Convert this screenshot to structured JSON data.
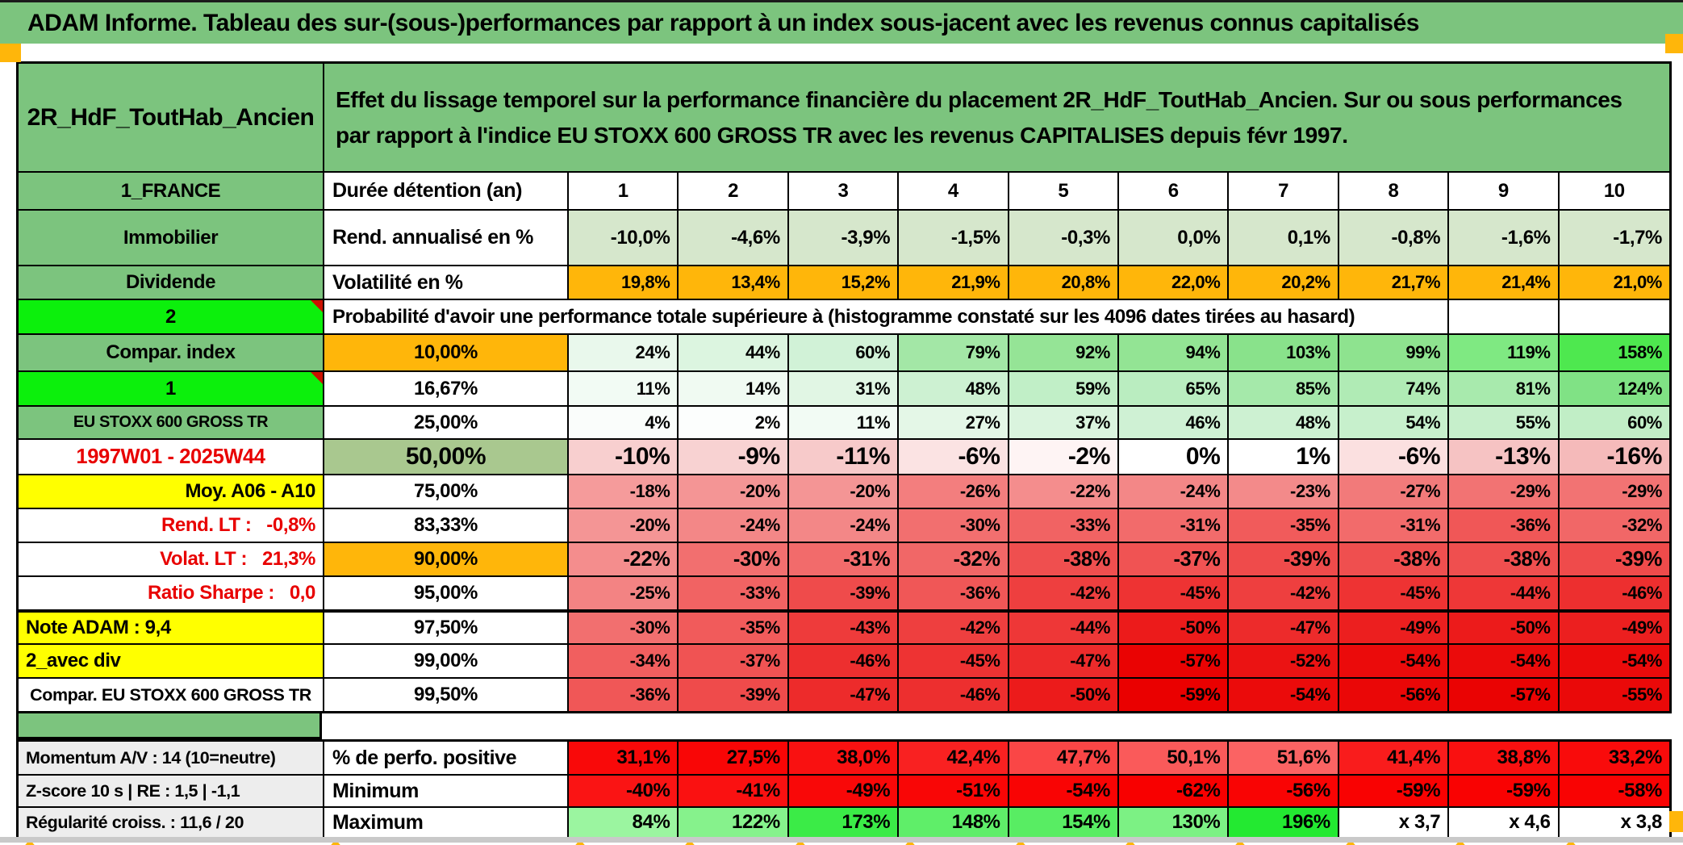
{
  "title": "ADAM Informe. Tableau des sur-(sous-)performances par rapport à un index sous-jacent avec les revenus connus capitalisés",
  "header": {
    "placement": "2R_HdF_ToutHab_Ancien",
    "description": "Effet du lissage temporel sur la performance financière du placement 2R_HdF_ToutHab_Ancien. Sur ou sous performances par rapport à l'indice EU STOXX 600 GROSS TR avec les revenus CAPITALISES depuis févr 1997."
  },
  "colors": {
    "header_green": "#7CC47E",
    "bright_green": "#0CF00C",
    "orange": "#FFB60A",
    "yellow": "#FFFF00",
    "sage": "#D6E7CC",
    "olive_green": "#A9C88F",
    "label_grey": "#EDEDED",
    "red_text": "#E80000",
    "marker_red": "#CC1100",
    "strip_grey": "#C9C9C9"
  },
  "table": {
    "duration_columns": [
      "1",
      "2",
      "3",
      "4",
      "5",
      "6",
      "7",
      "8",
      "9",
      "10"
    ],
    "rows": [
      {
        "id": "duration",
        "label": {
          "t": "1_FRANCE",
          "bg": "header_green"
        },
        "metric": "Durée détention (an)",
        "values": [
          "1",
          "2",
          "3",
          "4",
          "5",
          "6",
          "7",
          "8",
          "9",
          "10"
        ],
        "vAlign": "center",
        "vBg": "#FFFFFF",
        "vSize": "md"
      },
      {
        "id": "rendement",
        "label": {
          "t": "Immobilier",
          "bg": "header_green"
        },
        "metric": "Rend. annualisé en %",
        "values": [
          "-10,0%",
          "-4,6%",
          "-3,9%",
          "-1,5%",
          "-0,3%",
          "0,0%",
          "0,1%",
          "-0,8%",
          "-1,6%",
          "-1,7%"
        ],
        "vBg": "sage",
        "vSize": "md"
      },
      {
        "id": "volatilite",
        "label": {
          "t": "Dividende",
          "bg": "header_green"
        },
        "metric": "Volatilité en %",
        "values": [
          "19,8%",
          "13,4%",
          "15,2%",
          "21,9%",
          "20,8%",
          "22,0%",
          "20,2%",
          "21,7%",
          "21,4%",
          "21,0%"
        ],
        "vBg": "orange"
      },
      {
        "id": "proba-header",
        "type": "merged",
        "label": {
          "t": "2",
          "bg": "bright_green",
          "marker": true
        },
        "merged": "Probabilité d'avoir une performance totale supérieure à (histogramme constaté sur les 4096 dates tirées au hasard)"
      },
      {
        "id": "p10",
        "label": {
          "t": "Compar. index",
          "bg": "header_green"
        },
        "pct": {
          "t": "10,00%",
          "bg": "orange"
        },
        "values": [
          "24%",
          "44%",
          "60%",
          "79%",
          "92%",
          "94%",
          "103%",
          "99%",
          "119%",
          "158%"
        ],
        "vColors": [
          "#E9F8EC",
          "#DCF5E0",
          "#D1F2D7",
          "#A3E7A6",
          "#95E496",
          "#93E494",
          "#89E28B",
          "#8EE38F",
          "#7FE982",
          "#4EE84F"
        ]
      },
      {
        "id": "p16",
        "label": {
          "t": "1",
          "bg": "bright_green",
          "marker": true
        },
        "pct": {
          "t": "16,67%"
        },
        "values": [
          "11%",
          "14%",
          "31%",
          "48%",
          "59%",
          "65%",
          "85%",
          "74%",
          "81%",
          "124%"
        ],
        "vColors": [
          "#F2FBF4",
          "#F0FAF2",
          "#E1F6E4",
          "#CDF1D2",
          "#C1EFC7",
          "#BAEDC0",
          "#A5E9AA",
          "#B0EBB5",
          "#A8EAAD",
          "#80E285"
        ]
      },
      {
        "id": "p25",
        "label": {
          "t": "EU STOXX 600 GROSS TR",
          "bg": "header_green",
          "size": "sm"
        },
        "pct": {
          "t": "25,00%"
        },
        "values": [
          "4%",
          "2%",
          "11%",
          "27%",
          "37%",
          "46%",
          "48%",
          "54%",
          "55%",
          "60%"
        ],
        "vColors": [
          "#FAFDFB",
          "#FCFEFD",
          "#F2FBF4",
          "#E4F7E7",
          "#DAF4DE",
          "#CFF1D4",
          "#CDF1D2",
          "#C7F0CC",
          "#C6EFCB",
          "#C1EEC6"
        ]
      },
      {
        "id": "p50",
        "label": {
          "t": "1997W01 - 2025W44",
          "fg": "red_text",
          "size": "lg"
        },
        "pct": {
          "t": "50,00%",
          "bg": "olive_green",
          "size": "xl"
        },
        "values": [
          "-10%",
          "-9%",
          "-11%",
          "-6%",
          "-2%",
          "0%",
          "1%",
          "-6%",
          "-13%",
          "-16%"
        ],
        "vSize": "xl",
        "vColors": [
          "#F8CFCF",
          "#F8D2D2",
          "#F7CACA",
          "#FBE3E3",
          "#FEF4F4",
          "#FFFFFF",
          "#FFFFFF",
          "#FBE0E0",
          "#F6C3C3",
          "#F5BABA"
        ]
      },
      {
        "id": "p75",
        "label": {
          "t": "Moy. A06 - A10",
          "bg": "yellow",
          "align": "right"
        },
        "pct": {
          "t": "75,00%"
        },
        "values": [
          "-18%",
          "-20%",
          "-20%",
          "-26%",
          "-22%",
          "-24%",
          "-23%",
          "-27%",
          "-29%",
          "-29%"
        ],
        "vColors": [
          "#F59B9B",
          "#F49595",
          "#F49595",
          "#F37E7E",
          "#F48D8D",
          "#F38787",
          "#F38A8A",
          "#F27A7A",
          "#F27373",
          "#F27373"
        ]
      },
      {
        "id": "p83",
        "label": {
          "t": "Rend. LT :   -0,8%",
          "fg": "red_text",
          "align": "right"
        },
        "pct": {
          "t": "83,33%"
        },
        "values": [
          "-20%",
          "-24%",
          "-24%",
          "-30%",
          "-33%",
          "-31%",
          "-35%",
          "-31%",
          "-36%",
          "-32%"
        ],
        "vColors": [
          "#F49595",
          "#F38787",
          "#F38787",
          "#F26F6F",
          "#F16363",
          "#F26B6B",
          "#F15B5B",
          "#F26B6B",
          "#F05757",
          "#F16767"
        ]
      },
      {
        "id": "p90",
        "label": {
          "t": "Volat. LT :   21,3%",
          "fg": "red_text",
          "align": "right"
        },
        "pct": {
          "t": "90,00%",
          "bg": "orange"
        },
        "values": [
          "-22%",
          "-30%",
          "-31%",
          "-32%",
          "-38%",
          "-37%",
          "-39%",
          "-38%",
          "-38%",
          "-39%"
        ],
        "vSize": "lg",
        "vColors": [
          "#F48D8D",
          "#F26F6F",
          "#F26B6B",
          "#F16767",
          "#EF4F4F",
          "#F05353",
          "#EF4B4B",
          "#EF4F4F",
          "#EF4F4F",
          "#EF4B4B"
        ]
      },
      {
        "id": "p95",
        "label": {
          "t": "Ratio Sharpe :   0,0",
          "fg": "red_text",
          "align": "right"
        },
        "pct": {
          "t": "95,00%"
        },
        "values": [
          "-25%",
          "-33%",
          "-39%",
          "-36%",
          "-42%",
          "-45%",
          "-42%",
          "-45%",
          "-44%",
          "-46%"
        ],
        "vColors": [
          "#F38383",
          "#F16363",
          "#EF4B4B",
          "#F05757",
          "#EE3F3F",
          "#EE3333",
          "#EE3F3F",
          "#EE3333",
          "#EE3737",
          "#ED2F2F"
        ]
      },
      {
        "id": "p975",
        "thickTop": true,
        "label": {
          "t": "Note ADAM : 9,4",
          "bg": "yellow",
          "align": "left"
        },
        "pct": {
          "t": "97,50%"
        },
        "values": [
          "-30%",
          "-35%",
          "-43%",
          "-42%",
          "-44%",
          "-50%",
          "-47%",
          "-49%",
          "-50%",
          "-49%"
        ],
        "vColors": [
          "#F26F6F",
          "#F15B5B",
          "#EE3B3B",
          "#EE3F3F",
          "#EE3737",
          "#EC1B1B",
          "#ED2B2B",
          "#EC1F1F",
          "#EC1B1B",
          "#EC1F1F"
        ]
      },
      {
        "id": "p99",
        "label": {
          "t": "2_avec div",
          "bg": "yellow",
          "align": "left"
        },
        "pct": {
          "t": "99,00%"
        },
        "values": [
          "-34%",
          "-37%",
          "-46%",
          "-45%",
          "-47%",
          "-57%",
          "-52%",
          "-54%",
          "-54%",
          "-54%"
        ],
        "vColors": [
          "#F15F5F",
          "#F05353",
          "#ED2F2F",
          "#EE3333",
          "#ED2B2B",
          "#EA0303",
          "#EB1313",
          "#EB0B0B",
          "#EB0B0B",
          "#EB0B0B"
        ]
      },
      {
        "id": "p995",
        "label": {
          "t": "Compar. EU STOXX 600 GROSS TR",
          "size": "sm2"
        },
        "pct": {
          "t": "99,50%"
        },
        "values": [
          "-36%",
          "-39%",
          "-47%",
          "-46%",
          "-50%",
          "-59%",
          "-54%",
          "-56%",
          "-57%",
          "-55%"
        ],
        "vColors": [
          "#F05757",
          "#EF4B4B",
          "#ED2B2B",
          "#ED2F2F",
          "#EC1B1B",
          "#EA0000",
          "#EB0B0B",
          "#EA0707",
          "#EA0303",
          "#EA0909"
        ]
      }
    ],
    "bottom_rows": [
      {
        "id": "perf-positive",
        "label": {
          "t": "Momentum A/V : 14 (10=neutre)",
          "bg": "label_grey",
          "align": "left",
          "size": "sm2"
        },
        "metric": "% de perfo. positive",
        "values": [
          "31,1%",
          "27,5%",
          "38,0%",
          "42,4%",
          "47,7%",
          "50,1%",
          "51,6%",
          "41,4%",
          "38,8%",
          "33,2%"
        ],
        "vSize": "md",
        "vColors": [
          "#F90909",
          "#F90606",
          "#F91111",
          "#F92121",
          "#FA4646",
          "#FA5A5A",
          "#FB6363",
          "#F91C1C",
          "#F91010",
          "#F90B0B"
        ]
      },
      {
        "id": "minimum",
        "label": {
          "t": "Z-score 10 s | RE : 1,5 | -1,1",
          "bg": "label_grey",
          "align": "left",
          "size": "sm2"
        },
        "metric": "Minimum",
        "values": [
          "-40%",
          "-41%",
          "-49%",
          "-51%",
          "-54%",
          "-62%",
          "-56%",
          "-59%",
          "-59%",
          "-58%"
        ],
        "vSize": "md",
        "vColors": [
          "#FA1414",
          "#FA1111",
          "#F90808",
          "#F90606",
          "#F90404",
          "#F80000",
          "#F90404",
          "#F90202",
          "#F90202",
          "#F90303"
        ]
      },
      {
        "id": "maximum",
        "label": {
          "t": "Régularité croiss. : 11,6 / 20",
          "bg": "label_grey",
          "align": "left",
          "size": "sm2"
        },
        "metric": "Maximum",
        "values": [
          "84%",
          "122%",
          "173%",
          "148%",
          "154%",
          "130%",
          "196%",
          "x 3,7",
          "x 4,6",
          "x 3,8"
        ],
        "vSize": "md",
        "vColors": [
          "#9BF5A0",
          "#86F28C",
          "#3BEB47",
          "#5FEE69",
          "#58ED63",
          "#7CF184",
          "#23E931",
          "#FFFFFF",
          "#FFFFFF",
          "#FFFFFF"
        ]
      }
    ]
  }
}
